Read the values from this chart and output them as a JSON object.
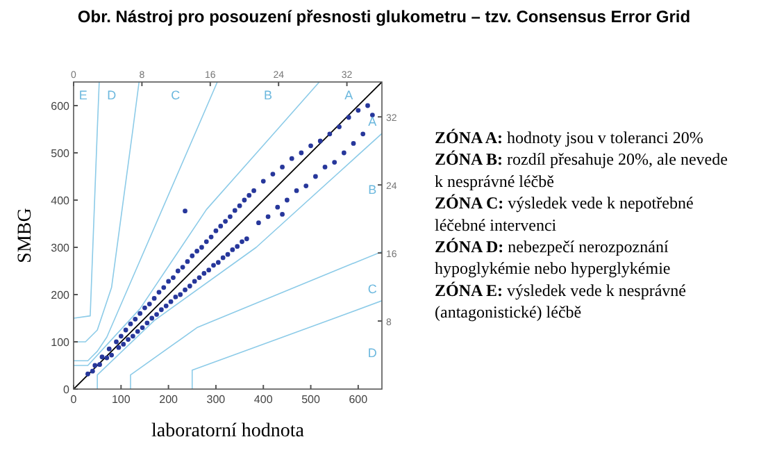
{
  "chart_data": {
    "type": "scatter",
    "title": "Obr. Nástroj pro posouzení přesnosti glukometru – tzv. Consensus Error Grid",
    "xlabel": "laboratorní hodnota",
    "ylabel": "SMBG",
    "xlim": [
      0,
      650
    ],
    "ylim": [
      0,
      650
    ],
    "xticks": [
      0,
      100,
      200,
      300,
      400,
      500,
      600
    ],
    "yticks": [
      0,
      100,
      200,
      300,
      400,
      500,
      600
    ],
    "x2lim": [
      0,
      36.1
    ],
    "x2ticks": [
      0,
      8,
      16,
      24,
      32
    ],
    "y2lim": [
      0,
      36.1
    ],
    "y2ticks": [
      8,
      16,
      24,
      32
    ],
    "grid": false,
    "series": [
      {
        "type": "line",
        "marker": "none",
        "color": "#000000",
        "x": [
          0,
          650
        ],
        "values": [
          0,
          650
        ]
      },
      {
        "type": "line",
        "marker": "none",
        "color": "#8ccbe8",
        "x": [
          0,
          30,
          140,
          280,
          430,
          518
        ],
        "values": [
          50,
          50,
          170,
          380,
          550,
          650
        ]
      },
      {
        "type": "line",
        "marker": "none",
        "color": "#8ccbe8",
        "x": [
          50,
          50,
          170,
          385,
          550,
          650
        ],
        "values": [
          0,
          30,
          145,
          300,
          450,
          541
        ]
      },
      {
        "type": "line",
        "marker": "none",
        "color": "#8ccbe8",
        "x": [
          0,
          30,
          50,
          70,
          260,
          303
        ],
        "values": [
          60,
          60,
          80,
          110,
          550,
          650
        ]
      },
      {
        "type": "line",
        "marker": "none",
        "color": "#8ccbe8",
        "x": [
          120,
          120,
          260,
          550,
          650
        ],
        "values": [
          0,
          30,
          130,
          250,
          291
        ]
      },
      {
        "type": "line",
        "marker": "none",
        "color": "#8ccbe8",
        "x": [
          0,
          25,
          50,
          80,
          125,
          138
        ],
        "values": [
          100,
          100,
          125,
          215,
          550,
          650
        ]
      },
      {
        "type": "line",
        "marker": "none",
        "color": "#8ccbe8",
        "x": [
          250,
          250,
          550,
          650
        ],
        "values": [
          0,
          40,
          150,
          187
        ]
      },
      {
        "type": "line",
        "marker": "none",
        "color": "#8ccbe8",
        "x": [
          0,
          35,
          50,
          54
        ],
        "values": [
          150,
          155,
          550,
          650
        ]
      },
      {
        "marker": "circle",
        "color": "#27379b",
        "x": [
          30,
          40,
          45,
          55,
          60,
          70,
          75,
          80,
          90,
          95,
          100,
          105,
          110,
          115,
          120,
          125,
          130,
          135,
          140,
          145,
          150,
          155,
          160,
          165,
          170,
          175,
          180,
          185,
          190,
          195,
          200,
          205,
          210,
          215,
          220,
          225,
          230,
          235,
          240,
          245,
          250,
          255,
          260,
          265,
          270,
          275,
          280,
          285,
          290,
          295,
          300,
          305,
          310,
          315,
          320,
          325,
          330,
          335,
          340,
          345,
          350,
          355,
          360,
          365,
          370,
          380,
          390,
          400,
          410,
          420,
          430,
          440,
          450,
          460,
          470,
          480,
          490,
          500,
          510,
          520,
          530,
          540,
          550,
          560,
          570,
          580,
          590,
          600,
          610,
          620,
          630,
          440,
          235
        ],
        "values": [
          32,
          38,
          50,
          52,
          68,
          66,
          85,
          72,
          100,
          88,
          112,
          95,
          125,
          105,
          138,
          112,
          148,
          122,
          160,
          130,
          172,
          140,
          180,
          150,
          192,
          158,
          205,
          168,
          215,
          176,
          228,
          185,
          236,
          195,
          250,
          200,
          258,
          210,
          270,
          218,
          282,
          228,
          292,
          236,
          300,
          245,
          312,
          252,
          322,
          262,
          335,
          268,
          345,
          278,
          355,
          285,
          365,
          295,
          378,
          302,
          388,
          312,
          400,
          318,
          410,
          420,
          352,
          440,
          365,
          455,
          385,
          470,
          400,
          488,
          420,
          500,
          430,
          515,
          450,
          525,
          470,
          540,
          480,
          555,
          500,
          575,
          520,
          590,
          540,
          600,
          580,
          370,
          377
        ]
      }
    ],
    "annotations": [
      "E",
      "D",
      "C",
      "B",
      "A",
      "A",
      "B",
      "C",
      "D",
      "ZÓNA A: hodnoty jsou v toleranci 20%",
      "ZÓNA B: rozdíl přesahuje 20%, ale nevede k nesprávné léčbě",
      "ZÓNA C: výsledek vede k nepotřebné léčebné intervenci",
      "ZÓNA D: nebezpečí nerozpoznání hypoglykémie nebo hyperglykémie",
      "ZÓNA E: výsledek vede k nesprávné (antagonistické) léčbě"
    ]
  }
}
